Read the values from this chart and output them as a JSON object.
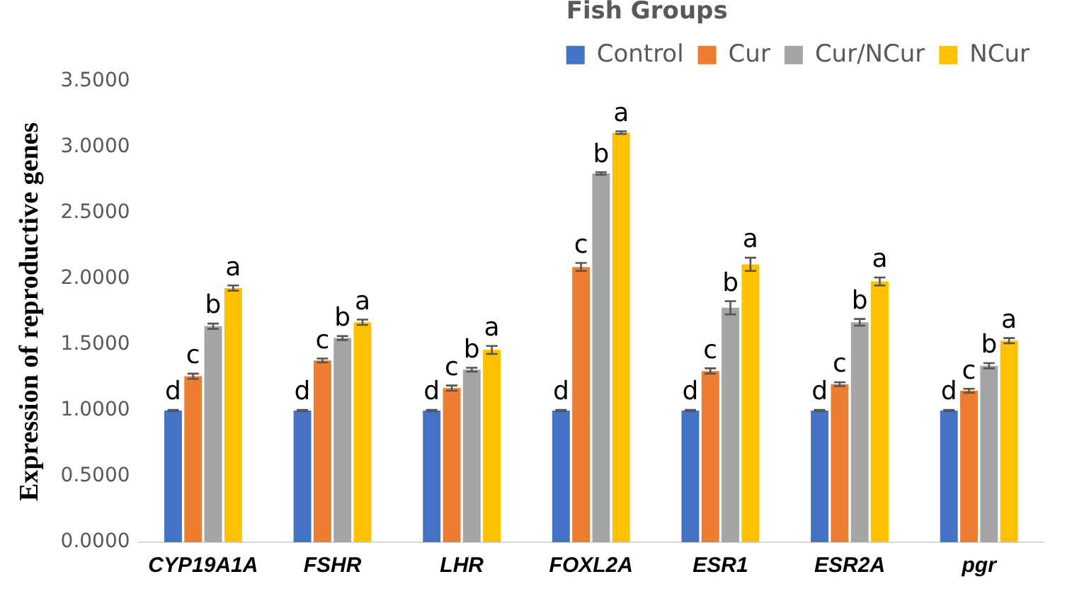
{
  "chart_data": {
    "type": "bar",
    "ylabel": "Expression of reproductive genes",
    "legend_title": "Fish Groups",
    "legend": "top",
    "categories": [
      "CYP19A1A",
      "FSHR",
      "LHR",
      "FOXL2A",
      "ESR1",
      "ESR2A",
      "pgr"
    ],
    "series": [
      {
        "name": "Control",
        "color": "#4472c4",
        "values": [
          1,
          1,
          1,
          1,
          1,
          1,
          1
        ],
        "errors": [
          0.005,
          0.005,
          0.005,
          0.005,
          0.005,
          0.005,
          0.005
        ],
        "value_labels": [
          "d",
          "d",
          "d",
          "d",
          "d",
          "d",
          "d"
        ]
      },
      {
        "name": "Cur",
        "color": "#ed7d31",
        "values": [
          1.26,
          1.38,
          1.17,
          2.09,
          1.3,
          1.2,
          1.15
        ],
        "errors": [
          0.02,
          0.015,
          0.02,
          0.03,
          0.02,
          0.015,
          0.015
        ],
        "value_labels": [
          "c",
          "c",
          "c",
          "c",
          "c",
          "c",
          "c"
        ]
      },
      {
        "name": "Cur/NCur",
        "color": "#a5a5a5",
        "values": [
          1.64,
          1.55,
          1.31,
          2.8,
          1.78,
          1.67,
          1.34
        ],
        "errors": [
          0.02,
          0.015,
          0.015,
          0.01,
          0.05,
          0.025,
          0.02
        ],
        "value_labels": [
          "b",
          "b",
          "b",
          "b",
          "b",
          "b",
          "b"
        ]
      },
      {
        "name": "NCur",
        "color": "#ffc000",
        "values": [
          1.93,
          1.67,
          1.46,
          3.11,
          2.11,
          1.98,
          1.53
        ],
        "errors": [
          0.02,
          0.02,
          0.03,
          0.01,
          0.05,
          0.03,
          0.02
        ],
        "value_labels": [
          "a",
          "a",
          "a",
          "a",
          "a",
          "a",
          "a"
        ]
      }
    ],
    "ylim": [
      0,
      3.5
    ],
    "yticks": [
      {
        "value": 0,
        "label": "0.0000"
      },
      {
        "value": 0.5,
        "label": "0.5000"
      },
      {
        "value": 1,
        "label": "1.0000"
      },
      {
        "value": 1.5,
        "label": "1.5000"
      },
      {
        "value": 2,
        "label": "2.0000"
      },
      {
        "value": 2.5,
        "label": "2.5000"
      },
      {
        "value": 3,
        "label": "3.0000"
      },
      {
        "value": 3.5,
        "label": "3.5000"
      }
    ],
    "grid": false
  }
}
